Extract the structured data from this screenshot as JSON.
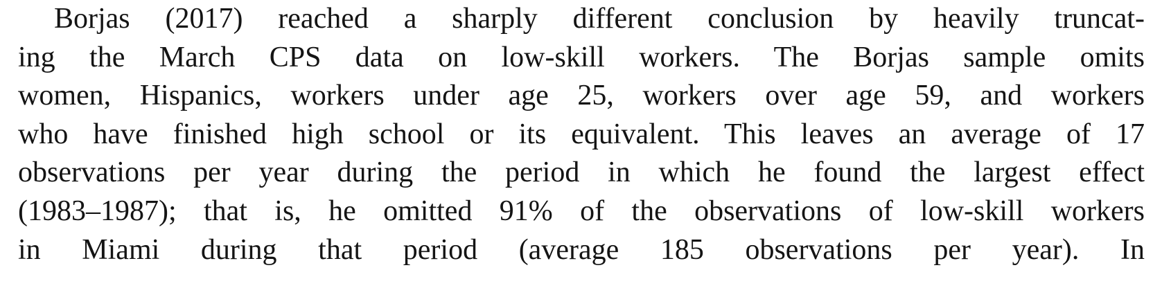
{
  "paragraph": {
    "lines": [
      "Borjas (2017) reached a sharply different conclusion by heavily truncat-",
      "ing the March CPS data on low-skill workers. The Borjas sample omits",
      "women, Hispanics, workers under age 25, workers over age 59, and workers",
      "who have finished high school or its equivalent. This leaves an average of 17",
      "observations per year during the period in which he found the largest effect",
      "(1983–1987); that is, he omitted 91% of the observations of low-skill workers",
      "in Miami during that period (average 185 observations per year). In"
    ]
  }
}
